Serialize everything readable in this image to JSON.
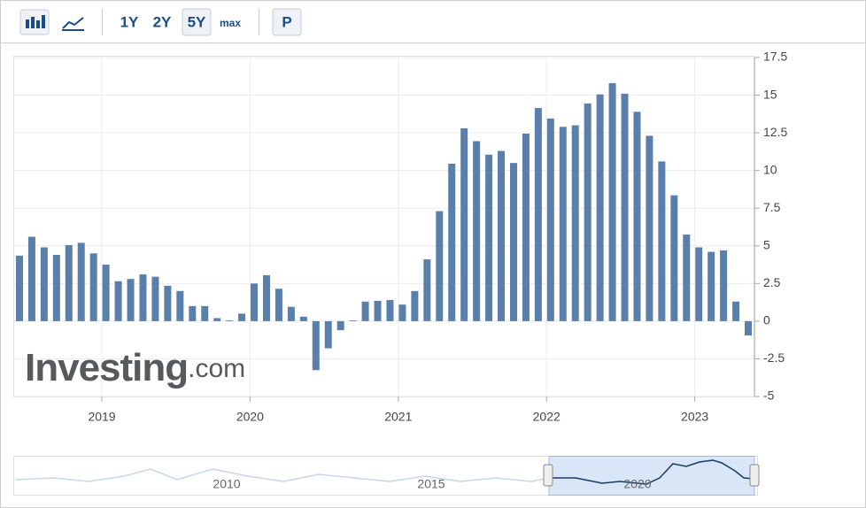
{
  "toolbar": {
    "buttons": [
      "1Y",
      "2Y",
      "5Y",
      "max",
      "P"
    ]
  },
  "chart_data": {
    "type": "bar",
    "color": "#5a7fab",
    "grid": true,
    "categories": [
      null,
      null,
      null,
      null,
      null,
      null,
      null,
      null,
      null,
      null,
      null,
      null,
      null,
      null,
      null,
      null,
      null,
      null,
      null,
      null,
      null,
      null,
      null,
      null,
      null,
      null,
      null,
      null,
      null,
      null,
      null,
      null,
      null,
      null,
      null,
      null,
      null,
      null,
      null,
      null,
      null,
      null,
      null,
      null,
      null,
      null,
      null,
      null,
      null,
      null,
      null,
      null,
      null,
      null,
      null,
      null,
      null,
      null,
      null,
      null
    ],
    "values": [
      4.35,
      5.6,
      4.9,
      4.4,
      5.05,
      5.2,
      4.5,
      3.75,
      2.65,
      2.8,
      3.1,
      2.95,
      2.35,
      2.0,
      1.0,
      1.0,
      0.2,
      0.05,
      0.5,
      2.5,
      3.05,
      2.15,
      0.95,
      0.3,
      -3.25,
      -1.8,
      -0.6,
      0.05,
      1.3,
      1.35,
      1.4,
      1.1,
      2.0,
      4.1,
      7.3,
      10.45,
      12.8,
      11.95,
      11.05,
      11.3,
      10.5,
      12.45,
      14.15,
      13.45,
      12.9,
      13.0,
      14.45,
      15.05,
      15.8,
      15.1,
      13.9,
      12.3,
      10.6,
      8.35,
      5.75,
      4.9,
      4.6,
      4.7,
      1.3,
      -0.95
    ],
    "ylim": [
      -5,
      17.5
    ],
    "yticks": [
      -5,
      -2.5,
      0,
      2.5,
      5,
      7.5,
      10,
      12.5,
      15,
      17.5
    ],
    "xticks": [
      {
        "value": 6.67,
        "label": "2019"
      },
      {
        "value": 18.67,
        "label": "2020"
      },
      {
        "value": 30.67,
        "label": "2021"
      },
      {
        "value": 42.67,
        "label": "2022"
      },
      {
        "value": 54.67,
        "label": "2023"
      }
    ]
  },
  "logo": {
    "name": "Investing",
    "suffix": ".com"
  },
  "navigator": {
    "labels": [
      "2010",
      "2015",
      "2020"
    ]
  }
}
